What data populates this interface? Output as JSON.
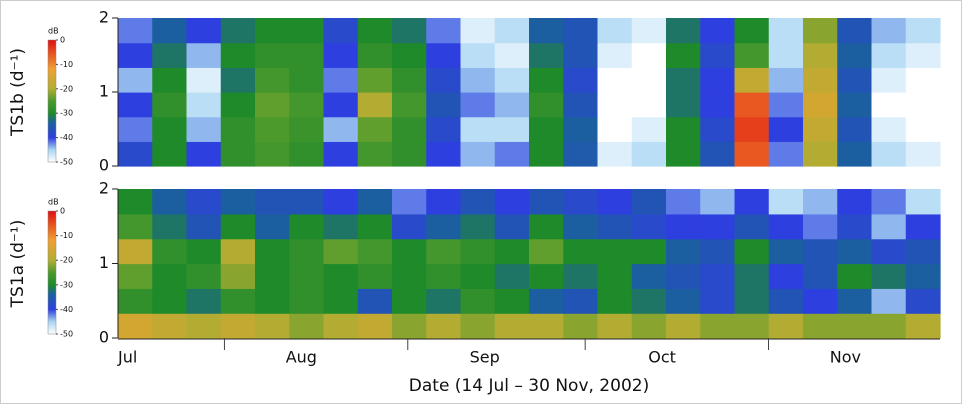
{
  "chart_data": [
    {
      "type": "heatmap",
      "ylabel": "TS1b (d⁻¹)",
      "xlim": [
        0,
        139
      ],
      "ylim": [
        0,
        2
      ],
      "yticks": [
        0,
        1,
        2
      ],
      "zlabel": "dB",
      "zlim": [
        -50,
        0
      ],
      "zticks": [
        0,
        -10,
        -20,
        -30,
        -40,
        -50
      ],
      "colorscale": [
        [
          -50,
          "#ffffff"
        ],
        [
          -45,
          "#a9d6f2"
        ],
        [
          -40,
          "#2e3fe0"
        ],
        [
          -34,
          "#1c5fa0"
        ],
        [
          -30,
          "#1f8a2a"
        ],
        [
          -25,
          "#4c9a2c"
        ],
        [
          -20,
          "#b2ad32"
        ],
        [
          -12,
          "#f0a030"
        ],
        [
          0,
          "#e01010"
        ]
      ],
      "z": [
        [
          -38,
          -30,
          -40,
          -28,
          -26,
          -28,
          -40,
          -26,
          -28,
          -40,
          -44,
          -42,
          -30,
          -35,
          -48,
          -46,
          -30,
          -36,
          -6,
          -42,
          -20,
          -34,
          -46,
          -48
        ],
        [
          -42,
          -30,
          -44,
          -28,
          -25,
          -27,
          -44,
          -24,
          -28,
          -38,
          -46,
          -46,
          -30,
          -34,
          -50,
          -48,
          -30,
          -38,
          -4,
          -40,
          -18,
          -36,
          -48,
          -50
        ],
        [
          -40,
          -28,
          -46,
          -30,
          -24,
          -26,
          -40,
          -20,
          -26,
          -36,
          -42,
          -44,
          -28,
          -36,
          -50,
          -50,
          -32,
          -40,
          -6,
          -42,
          -16,
          -34,
          -50,
          -50
        ],
        [
          -44,
          -30,
          -48,
          -32,
          -26,
          -28,
          -42,
          -24,
          -28,
          -38,
          -44,
          -46,
          -30,
          -38,
          -50,
          -50,
          -32,
          -40,
          -18,
          -44,
          -18,
          -36,
          -48,
          -50
        ],
        [
          -40,
          -32,
          -44,
          -30,
          -28,
          -28,
          -40,
          -28,
          -30,
          -40,
          -46,
          -48,
          -32,
          -36,
          -48,
          -50,
          -30,
          -38,
          -26,
          -46,
          -20,
          -34,
          -46,
          -48
        ],
        [
          -42,
          -34,
          -40,
          -32,
          -30,
          -30,
          -38,
          -30,
          -32,
          -42,
          -48,
          -46,
          -34,
          -36,
          -46,
          -48,
          -32,
          -40,
          -30,
          -46,
          -22,
          -36,
          -44,
          -46
        ]
      ]
    },
    {
      "type": "heatmap",
      "ylabel": "TS1a (d⁻¹)",
      "xlabel": "Date (14 Jul – 30 Nov, 2002)",
      "xlim": [
        0,
        139
      ],
      "ylim": [
        0,
        2
      ],
      "yticks": [
        0,
        1,
        2
      ],
      "xticks": [
        {
          "value": 0,
          "label": "Jul"
        },
        {
          "value": 31,
          "label": "Aug"
        },
        {
          "value": 62,
          "label": "Sep"
        },
        {
          "value": 92,
          "label": "Oct"
        },
        {
          "value": 123,
          "label": "Nov"
        }
      ],
      "month_boundaries": [
        18,
        49,
        79,
        110
      ],
      "zlabel": "dB",
      "zlim": [
        -50,
        0
      ],
      "zticks": [
        0,
        -10,
        -20,
        -30,
        -40,
        -50
      ],
      "colorscale": [
        [
          -50,
          "#ffffff"
        ],
        [
          -45,
          "#a9d6f2"
        ],
        [
          -40,
          "#2e3fe0"
        ],
        [
          -34,
          "#1c5fa0"
        ],
        [
          -30,
          "#1f8a2a"
        ],
        [
          -25,
          "#4c9a2c"
        ],
        [
          -20,
          "#b2ad32"
        ],
        [
          -12,
          "#f0a030"
        ],
        [
          0,
          "#e01010"
        ]
      ],
      "z": [
        [
          -16,
          -18,
          -20,
          -18,
          -20,
          -22,
          -20,
          -18,
          -22,
          -20,
          -22,
          -20,
          -20,
          -22,
          -20,
          -22,
          -20,
          -22,
          -22,
          -20,
          -22,
          -22,
          -22,
          -20
        ],
        [
          -28,
          -30,
          -32,
          -28,
          -30,
          -28,
          -30,
          -36,
          -30,
          -32,
          -28,
          -30,
          -34,
          -36,
          -30,
          -32,
          -34,
          -38,
          -32,
          -36,
          -40,
          -34,
          -44,
          -38
        ],
        [
          -24,
          -30,
          -28,
          -22,
          -30,
          -28,
          -30,
          -28,
          -30,
          -28,
          -30,
          -32,
          -30,
          -32,
          -30,
          -34,
          -36,
          -38,
          -32,
          -40,
          -36,
          -30,
          -32,
          -34
        ],
        [
          -18,
          -28,
          -30,
          -20,
          -30,
          -28,
          -24,
          -26,
          -30,
          -26,
          -28,
          -30,
          -24,
          -30,
          -30,
          -30,
          -34,
          -36,
          -30,
          -34,
          -36,
          -34,
          -38,
          -36
        ],
        [
          -26,
          -32,
          -36,
          -30,
          -34,
          -30,
          -32,
          -30,
          -38,
          -34,
          -32,
          -36,
          -30,
          -34,
          -36,
          -38,
          -40,
          -40,
          -36,
          -40,
          -42,
          -38,
          -44,
          -40
        ],
        [
          -30,
          -34,
          -38,
          -34,
          -36,
          -36,
          -40,
          -34,
          -42,
          -40,
          -36,
          -40,
          -36,
          -38,
          -40,
          -36,
          -42,
          -44,
          -40,
          -46,
          -44,
          -40,
          -42,
          -46
        ]
      ]
    }
  ]
}
